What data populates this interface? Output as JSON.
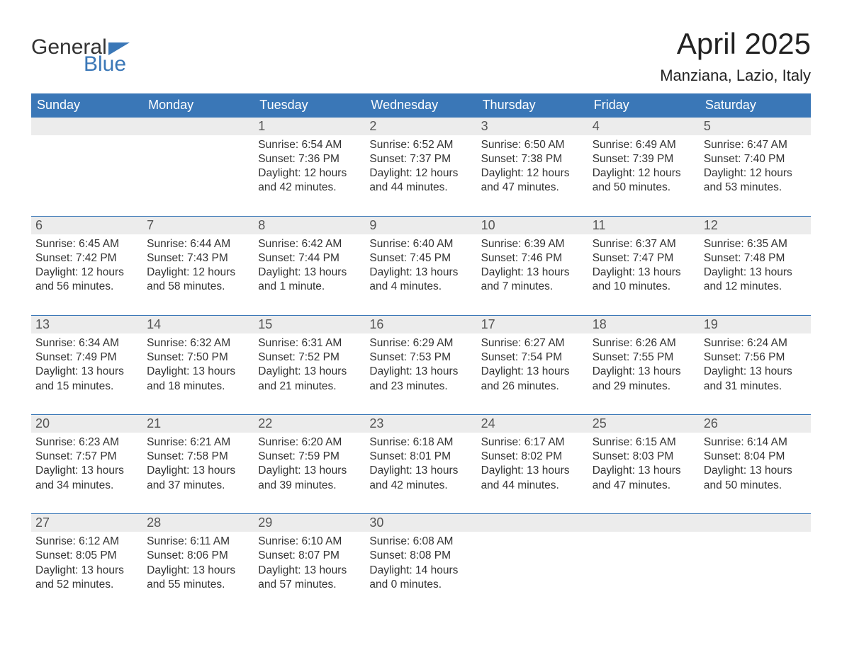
{
  "logo": {
    "word1": "General",
    "word2": "Blue",
    "text_color": "#333333",
    "accent_color": "#3a77b7"
  },
  "header": {
    "title": "April 2025",
    "subtitle": "Manziana, Lazio, Italy",
    "title_fontsize": 42,
    "subtitle_fontsize": 22
  },
  "calendar": {
    "type": "table",
    "days_of_week": [
      "Sunday",
      "Monday",
      "Tuesday",
      "Wednesday",
      "Thursday",
      "Friday",
      "Saturday"
    ],
    "header_bg": "#3a77b7",
    "header_text_color": "#ffffff",
    "daynum_bg": "#ececec",
    "daynum_border_top": "#3a77b7",
    "cell_text_color": "#333333",
    "cell_fontsize": 15.5,
    "daynum_fontsize": 18,
    "weeks": [
      [
        null,
        null,
        {
          "n": "1",
          "sunrise": "6:54 AM",
          "sunset": "7:36 PM",
          "daylight": "12 hours and 42 minutes."
        },
        {
          "n": "2",
          "sunrise": "6:52 AM",
          "sunset": "7:37 PM",
          "daylight": "12 hours and 44 minutes."
        },
        {
          "n": "3",
          "sunrise": "6:50 AM",
          "sunset": "7:38 PM",
          "daylight": "12 hours and 47 minutes."
        },
        {
          "n": "4",
          "sunrise": "6:49 AM",
          "sunset": "7:39 PM",
          "daylight": "12 hours and 50 minutes."
        },
        {
          "n": "5",
          "sunrise": "6:47 AM",
          "sunset": "7:40 PM",
          "daylight": "12 hours and 53 minutes."
        }
      ],
      [
        {
          "n": "6",
          "sunrise": "6:45 AM",
          "sunset": "7:42 PM",
          "daylight": "12 hours and 56 minutes."
        },
        {
          "n": "7",
          "sunrise": "6:44 AM",
          "sunset": "7:43 PM",
          "daylight": "12 hours and 58 minutes."
        },
        {
          "n": "8",
          "sunrise": "6:42 AM",
          "sunset": "7:44 PM",
          "daylight": "13 hours and 1 minute."
        },
        {
          "n": "9",
          "sunrise": "6:40 AM",
          "sunset": "7:45 PM",
          "daylight": "13 hours and 4 minutes."
        },
        {
          "n": "10",
          "sunrise": "6:39 AM",
          "sunset": "7:46 PM",
          "daylight": "13 hours and 7 minutes."
        },
        {
          "n": "11",
          "sunrise": "6:37 AM",
          "sunset": "7:47 PM",
          "daylight": "13 hours and 10 minutes."
        },
        {
          "n": "12",
          "sunrise": "6:35 AM",
          "sunset": "7:48 PM",
          "daylight": "13 hours and 12 minutes."
        }
      ],
      [
        {
          "n": "13",
          "sunrise": "6:34 AM",
          "sunset": "7:49 PM",
          "daylight": "13 hours and 15 minutes."
        },
        {
          "n": "14",
          "sunrise": "6:32 AM",
          "sunset": "7:50 PM",
          "daylight": "13 hours and 18 minutes."
        },
        {
          "n": "15",
          "sunrise": "6:31 AM",
          "sunset": "7:52 PM",
          "daylight": "13 hours and 21 minutes."
        },
        {
          "n": "16",
          "sunrise": "6:29 AM",
          "sunset": "7:53 PM",
          "daylight": "13 hours and 23 minutes."
        },
        {
          "n": "17",
          "sunrise": "6:27 AM",
          "sunset": "7:54 PM",
          "daylight": "13 hours and 26 minutes."
        },
        {
          "n": "18",
          "sunrise": "6:26 AM",
          "sunset": "7:55 PM",
          "daylight": "13 hours and 29 minutes."
        },
        {
          "n": "19",
          "sunrise": "6:24 AM",
          "sunset": "7:56 PM",
          "daylight": "13 hours and 31 minutes."
        }
      ],
      [
        {
          "n": "20",
          "sunrise": "6:23 AM",
          "sunset": "7:57 PM",
          "daylight": "13 hours and 34 minutes."
        },
        {
          "n": "21",
          "sunrise": "6:21 AM",
          "sunset": "7:58 PM",
          "daylight": "13 hours and 37 minutes."
        },
        {
          "n": "22",
          "sunrise": "6:20 AM",
          "sunset": "7:59 PM",
          "daylight": "13 hours and 39 minutes."
        },
        {
          "n": "23",
          "sunrise": "6:18 AM",
          "sunset": "8:01 PM",
          "daylight": "13 hours and 42 minutes."
        },
        {
          "n": "24",
          "sunrise": "6:17 AM",
          "sunset": "8:02 PM",
          "daylight": "13 hours and 44 minutes."
        },
        {
          "n": "25",
          "sunrise": "6:15 AM",
          "sunset": "8:03 PM",
          "daylight": "13 hours and 47 minutes."
        },
        {
          "n": "26",
          "sunrise": "6:14 AM",
          "sunset": "8:04 PM",
          "daylight": "13 hours and 50 minutes."
        }
      ],
      [
        {
          "n": "27",
          "sunrise": "6:12 AM",
          "sunset": "8:05 PM",
          "daylight": "13 hours and 52 minutes."
        },
        {
          "n": "28",
          "sunrise": "6:11 AM",
          "sunset": "8:06 PM",
          "daylight": "13 hours and 55 minutes."
        },
        {
          "n": "29",
          "sunrise": "6:10 AM",
          "sunset": "8:07 PM",
          "daylight": "13 hours and 57 minutes."
        },
        {
          "n": "30",
          "sunrise": "6:08 AM",
          "sunset": "8:08 PM",
          "daylight": "14 hours and 0 minutes."
        },
        null,
        null,
        null
      ]
    ],
    "labels": {
      "sunrise": "Sunrise:",
      "sunset": "Sunset:",
      "daylight": "Daylight:"
    }
  }
}
